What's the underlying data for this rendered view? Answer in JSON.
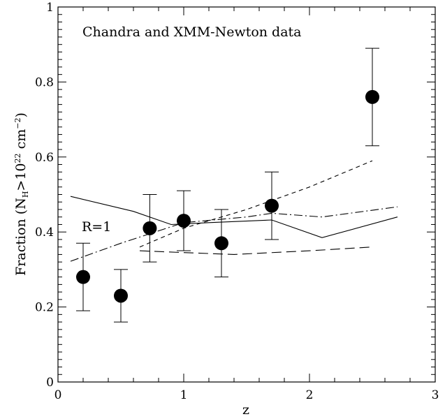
{
  "chart_data": {
    "type": "scatter",
    "title": "Chandra and XMM-Newton data",
    "xlabel": "z",
    "ylabel": {
      "prefix": "Fraction (N",
      "sub": "H",
      "mid": ">10",
      "sup": "22",
      "mid2": " cm",
      "sup2": "−2",
      "suffix": ")"
    },
    "xlim": [
      0,
      3
    ],
    "ylim": [
      0,
      1
    ],
    "x_ticks": [
      0,
      1,
      2,
      3
    ],
    "x_tick_labels": [
      "0",
      "1",
      "2",
      "3"
    ],
    "y_ticks": [
      0,
      0.2,
      0.4,
      0.6,
      0.8,
      1
    ],
    "y_tick_labels": [
      "0",
      "0.2",
      "0.4",
      "0.6",
      "0.8",
      "1"
    ],
    "annotation": "R=1",
    "points": [
      {
        "x": 0.2,
        "y": 0.28,
        "yerr_low": 0.19,
        "yerr_high": 0.37
      },
      {
        "x": 0.5,
        "y": 0.23,
        "yerr_low": 0.16,
        "yerr_high": 0.3
      },
      {
        "x": 0.73,
        "y": 0.41,
        "yerr_low": 0.32,
        "yerr_high": 0.5
      },
      {
        "x": 1.0,
        "y": 0.43,
        "yerr_low": 0.35,
        "yerr_high": 0.51
      },
      {
        "x": 1.3,
        "y": 0.37,
        "yerr_low": 0.28,
        "yerr_high": 0.46
      },
      {
        "x": 1.7,
        "y": 0.47,
        "yerr_low": 0.38,
        "yerr_high": 0.56
      },
      {
        "x": 2.5,
        "y": 0.76,
        "yerr_low": 0.63,
        "yerr_high": 0.89
      }
    ],
    "series": [
      {
        "style": "solid",
        "x": [
          0.1,
          0.6,
          0.9,
          1.2,
          1.7,
          2.1,
          2.7
        ],
        "y": [
          0.495,
          0.455,
          0.42,
          0.425,
          0.432,
          0.385,
          0.44
        ]
      },
      {
        "style": "short-dash",
        "x": [
          0.65,
          1.0,
          1.5,
          2.0,
          2.5
        ],
        "y": [
          0.36,
          0.41,
          0.46,
          0.52,
          0.59
        ]
      },
      {
        "style": "long-dash",
        "x": [
          0.65,
          1.0,
          1.4,
          2.0,
          2.5
        ],
        "y": [
          0.35,
          0.345,
          0.34,
          0.35,
          0.36
        ]
      },
      {
        "style": "dash-dot",
        "x": [
          0.1,
          0.5,
          1.0,
          1.5,
          1.7,
          2.1,
          2.7
        ],
        "y": [
          0.322,
          0.37,
          0.425,
          0.44,
          0.45,
          0.44,
          0.467
        ]
      }
    ]
  }
}
